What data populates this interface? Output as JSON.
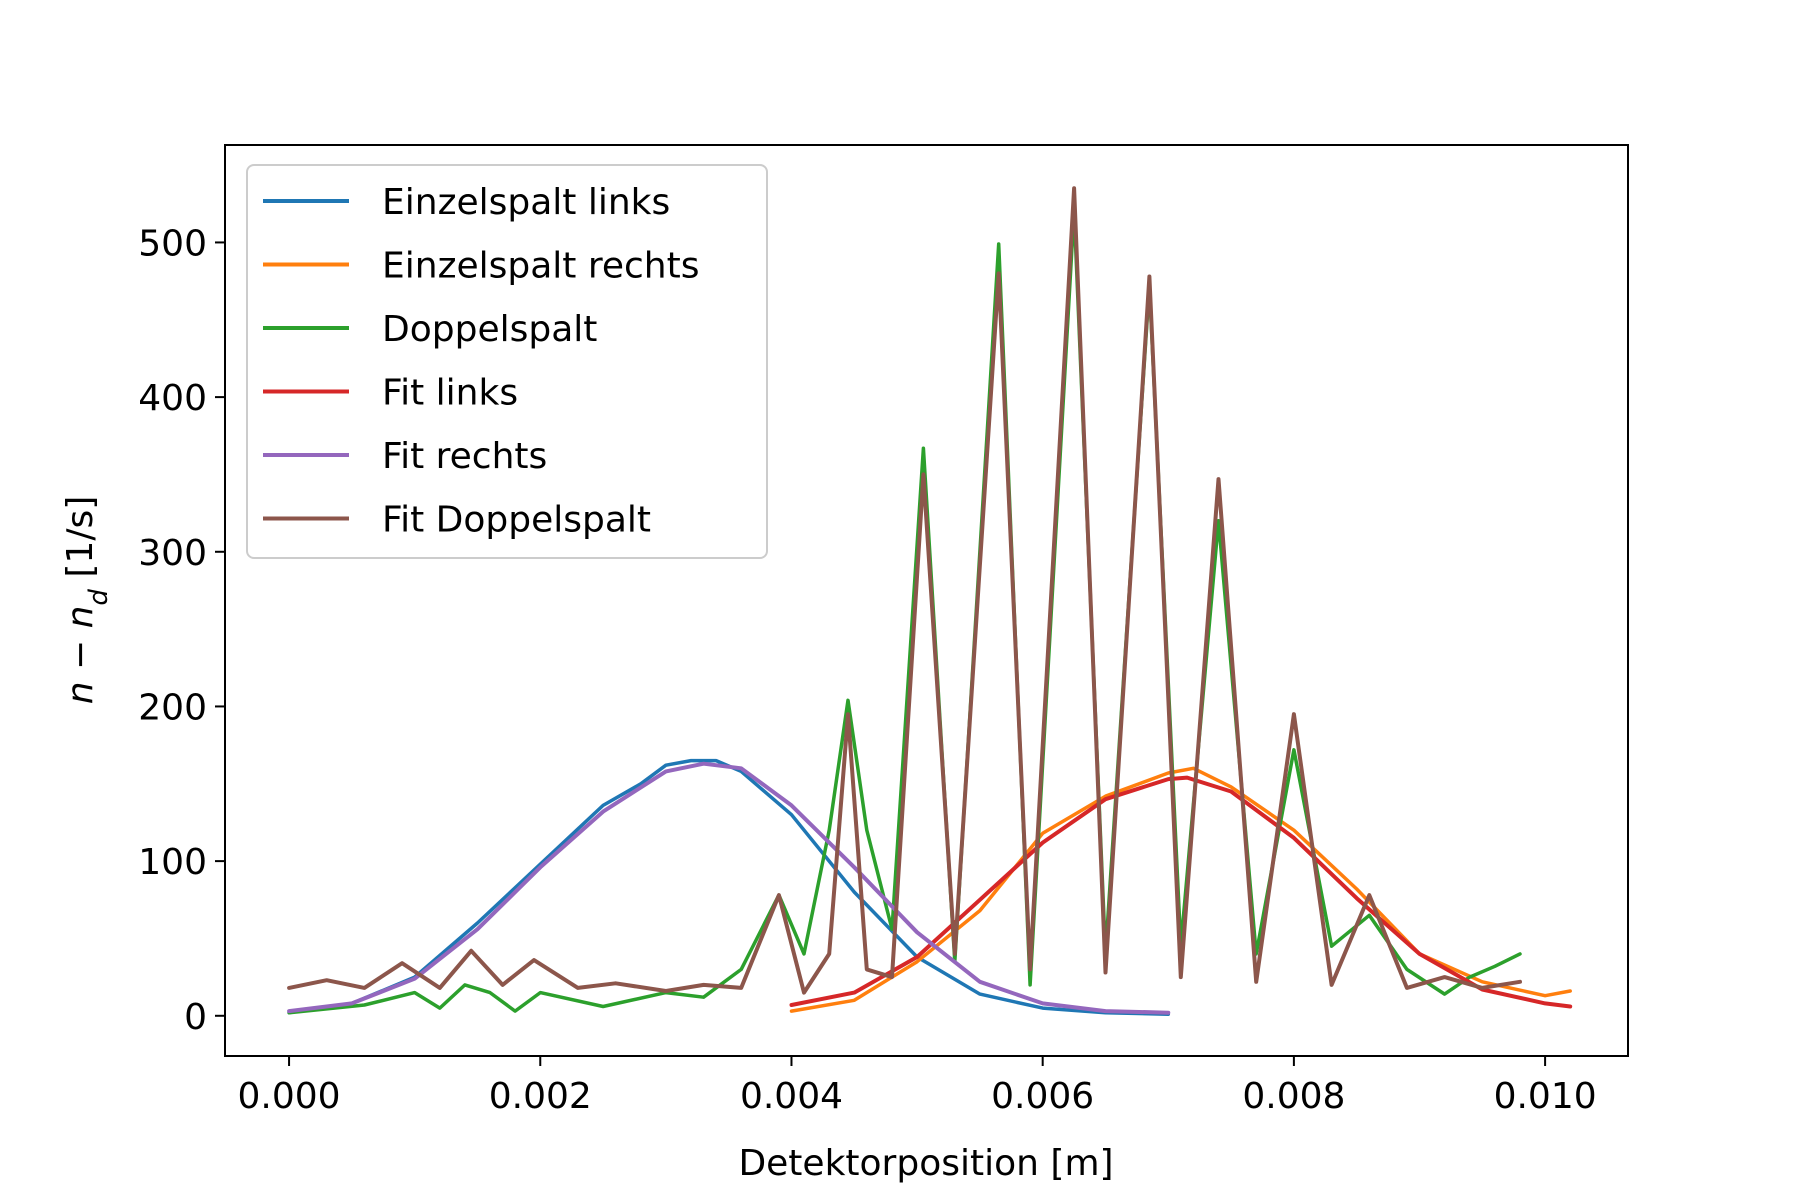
{
  "chart_data": {
    "type": "line",
    "xlabel": "Detektorposition [m]",
    "ylabel_main": "n − n",
    "ylabel_sub": "d",
    "ylabel_unit": " [1/s]",
    "xlim": [
      -0.00051,
      0.01066
    ],
    "ylim": [
      -26,
      563
    ],
    "xticks": [
      0,
      0.002,
      0.004,
      0.006,
      0.008,
      0.01
    ],
    "xtick_labels": [
      "0.000",
      "0.002",
      "0.004",
      "0.006",
      "0.008",
      "0.010"
    ],
    "yticks": [
      0,
      100,
      200,
      300,
      400,
      500
    ],
    "ytick_labels": [
      "0",
      "100",
      "200",
      "300",
      "400",
      "500"
    ],
    "legend_position": "top-left",
    "series": [
      {
        "name": "Einzelspalt links",
        "color": "#1f77b4",
        "kind": "data",
        "x": [
          0.0,
          0.0005,
          0.001,
          0.0015,
          0.002,
          0.0025,
          0.0028,
          0.003,
          0.0032,
          0.0034,
          0.0036,
          0.004,
          0.0045,
          0.005,
          0.0055,
          0.006,
          0.0065,
          0.007
        ],
        "y": [
          2,
          8,
          25,
          60,
          98,
          136,
          150,
          162,
          165,
          165,
          158,
          130,
          80,
          38,
          14,
          5,
          2,
          1
        ]
      },
      {
        "name": "Einzelspalt rechts",
        "color": "#ff7f0e",
        "kind": "data",
        "x": [
          0.004,
          0.0045,
          0.005,
          0.0055,
          0.006,
          0.0065,
          0.007,
          0.0072,
          0.0075,
          0.008,
          0.0085,
          0.009,
          0.0095,
          0.01,
          0.0102
        ],
        "y": [
          3,
          10,
          35,
          68,
          118,
          142,
          157,
          160,
          148,
          120,
          82,
          40,
          22,
          13,
          16
        ]
      },
      {
        "name": "Doppelspalt",
        "color": "#2ca02c",
        "kind": "data",
        "x": [
          0.0,
          0.0006,
          0.001,
          0.0012,
          0.0014,
          0.0016,
          0.0018,
          0.002,
          0.0025,
          0.003,
          0.0033,
          0.0036,
          0.0039,
          0.0041,
          0.0043,
          0.00445,
          0.0046,
          0.0048,
          0.00505,
          0.0053,
          0.00565,
          0.0059,
          0.00625,
          0.0065,
          0.00685,
          0.0071,
          0.0074,
          0.0077,
          0.008,
          0.0083,
          0.0086,
          0.0089,
          0.0092,
          0.0094,
          0.0096,
          0.0098
        ],
        "y": [
          2,
          7,
          15,
          5,
          20,
          15,
          3,
          15,
          6,
          15,
          12,
          30,
          78,
          40,
          120,
          204,
          120,
          56,
          367,
          35,
          499,
          20,
          521,
          40,
          472,
          45,
          320,
          40,
          172,
          45,
          65,
          30,
          14,
          25,
          32,
          40
        ]
      },
      {
        "name": "Fit links",
        "color": "#d62728",
        "kind": "fit",
        "x": [
          0.004,
          0.0045,
          0.005,
          0.0055,
          0.006,
          0.0065,
          0.007,
          0.00715,
          0.0075,
          0.008,
          0.0085,
          0.009,
          0.0095,
          0.01,
          0.0102
        ],
        "y": [
          7,
          15,
          38,
          75,
          112,
          140,
          153,
          154,
          145,
          115,
          76,
          40,
          17,
          8,
          6
        ]
      },
      {
        "name": "Fit rechts",
        "color": "#9467bd",
        "kind": "fit",
        "x": [
          0.0,
          0.0005,
          0.001,
          0.0015,
          0.002,
          0.0025,
          0.003,
          0.0033,
          0.0036,
          0.004,
          0.0045,
          0.005,
          0.0055,
          0.006,
          0.0065,
          0.007
        ],
        "y": [
          3,
          8,
          24,
          56,
          96,
          132,
          158,
          163,
          160,
          136,
          96,
          54,
          22,
          8,
          3,
          2
        ]
      },
      {
        "name": "Fit Doppelspalt",
        "color": "#8c564b",
        "kind": "fit",
        "x": [
          0.0,
          0.0003,
          0.0006,
          0.0009,
          0.0012,
          0.00145,
          0.0017,
          0.00195,
          0.0023,
          0.0026,
          0.003,
          0.0033,
          0.0036,
          0.0039,
          0.0041,
          0.0043,
          0.00445,
          0.0046,
          0.0048,
          0.00505,
          0.0053,
          0.00565,
          0.0059,
          0.00625,
          0.0065,
          0.00685,
          0.0071,
          0.0074,
          0.0077,
          0.008,
          0.0083,
          0.0086,
          0.0089,
          0.0092,
          0.0095,
          0.0098
        ],
        "y": [
          18,
          23,
          18,
          34,
          18,
          42,
          20,
          36,
          18,
          21,
          16,
          20,
          18,
          78,
          15,
          40,
          195,
          30,
          25,
          350,
          40,
          480,
          30,
          535,
          28,
          478,
          25,
          347,
          22,
          195,
          20,
          78,
          18,
          25,
          18,
          22
        ]
      }
    ]
  }
}
